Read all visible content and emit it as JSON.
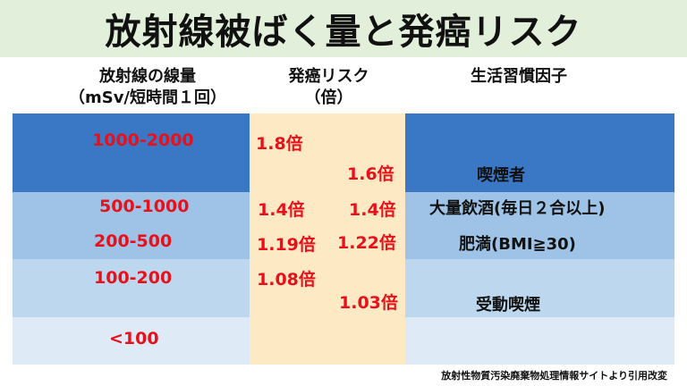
{
  "title": "放射線被ばく量と発癌リスク",
  "headers": {
    "dose_line1": "放射線の線量",
    "dose_line2": "（mSv/短時間１回）",
    "risk_line1": "発癌リスク",
    "risk_line2": "（倍）",
    "lifestyle": "生活習慣因子"
  },
  "rows": [
    {
      "dose": "1000-2000",
      "radiation_risk": "1.8倍",
      "lifestyle_risk": "1.6倍",
      "lifestyle_factor": "喫煙者"
    },
    {
      "dose": "500-1000",
      "radiation_risk": "1.4倍",
      "lifestyle_risk": "1.4倍",
      "lifestyle_factor": "大量飲酒(毎日２合以上)"
    },
    {
      "dose": "200-500",
      "radiation_risk": "1.19倍",
      "lifestyle_risk": "1.22倍",
      "lifestyle_factor": "肥満(BMI≧30)"
    },
    {
      "dose": "100-200",
      "radiation_risk": "1.08倍",
      "lifestyle_risk": "1.03倍",
      "lifestyle_factor": "受動喫煙"
    },
    {
      "dose": "<100"
    }
  ],
  "source": "放射性物質汚染廃棄物処理情報サイトより引用改変",
  "colors": {
    "title_bg": "#e2efda",
    "band_dark": "#3a78c5",
    "band_mid": "#9ec3e6",
    "band_light": "#bdd7ee",
    "band_lightest": "#deebf7",
    "risk_column": "#fde9c4",
    "value_red": "#e8101a"
  }
}
